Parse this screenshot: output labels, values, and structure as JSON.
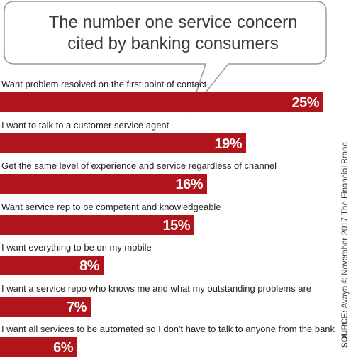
{
  "chart_data": {
    "type": "bar",
    "orientation": "horizontal",
    "title_lines": [
      "The number one service concern",
      "cited by banking consumers"
    ],
    "categories": [
      "Want problem resolved on the first point of contact",
      "I want to talk to a customer service agent",
      "Get the same level of experience and service regardless of channel",
      "Want service rep to be competent and knowledgeable",
      "I want everything to be on my mobile",
      "I want a service repo who knows me and what my outstanding problems are",
      "I want all services to be automated so I don't have to talk to anyone from the bank"
    ],
    "values": [
      25,
      19,
      16,
      15,
      8,
      7,
      6
    ],
    "value_labels": [
      "25%",
      "19%",
      "16%",
      "15%",
      "8%",
      "7%",
      "6%"
    ],
    "value_unit": "%",
    "xlim": [
      0,
      25
    ],
    "grid": false,
    "bar_color": "#b1151c"
  },
  "source": {
    "key": "SOURCE:",
    "text": "Avaya © November 2017 The Financial Brand"
  }
}
